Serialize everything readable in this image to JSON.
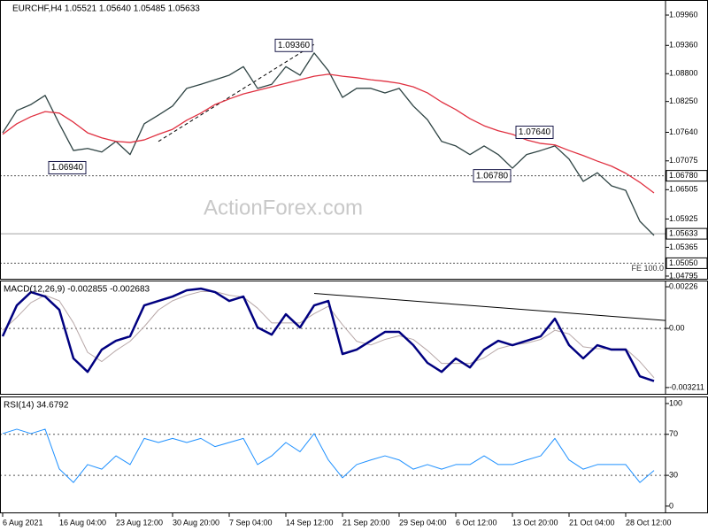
{
  "chart_data": [
    {
      "type": "line",
      "title": "EURCHF,H4  1.05521 1.05640 1.05485 1.05633",
      "watermark": "ActionForex.com",
      "categories": [
        "6 Aug 2021",
        null,
        null,
        null,
        "16 Aug 04:00",
        null,
        null,
        null,
        "23 Aug 12:00",
        null,
        null,
        null,
        "30 Aug 20:00",
        null,
        null,
        null,
        "7 Sep 04:00",
        null,
        null,
        null,
        "14 Sep 12:00",
        null,
        null,
        null,
        "21 Sep 20:00",
        null,
        null,
        null,
        "29 Sep 04:00",
        null,
        null,
        null,
        "6 Oct 12:00",
        null,
        null,
        null,
        "13 Oct 20:00",
        null,
        null,
        null,
        "21 Oct 04:00",
        null,
        null,
        null,
        "28 Oct 12:00",
        null,
        null
      ],
      "ylim": [
        1.04742,
        1.10223
      ],
      "yticks": [
        {
          "value": 1.0996,
          "label": "1.09960"
        },
        {
          "value": 1.0936,
          "label": "1.09360"
        },
        {
          "value": 1.088,
          "label": "1.08800"
        },
        {
          "value": 1.0825,
          "label": "1.08250"
        },
        {
          "value": 1.0764,
          "label": "1.07640"
        },
        {
          "value": 1.07075,
          "label": "1.07075"
        },
        {
          "value": 1.06505,
          "label": "1.06505"
        },
        {
          "value": 1.05925,
          "label": "1.05925"
        },
        {
          "value": 1.05365,
          "label": "1.05365"
        },
        {
          "value": 1.04795,
          "label": "1.04795"
        }
      ],
      "levels": [
        {
          "value": 1.0678,
          "label": "1.06780",
          "style": "dotted"
        },
        {
          "value": 1.05633,
          "label": "1.05633",
          "style": "solid"
        },
        {
          "value": 1.0505,
          "label": "1.05050",
          "style": "dotted",
          "note": "FE 100.0"
        }
      ],
      "annotations": [
        {
          "value": 1.0936,
          "label": "1.09360",
          "x": 22
        },
        {
          "value": 1.0764,
          "label": "1.07640",
          "x": 39
        },
        {
          "value": 1.0694,
          "label": "1.06940",
          "x": 6
        },
        {
          "value": 1.0678,
          "label": "1.06780",
          "x": 36
        }
      ],
      "trendlines": [
        {
          "from": [
            11,
            1.0746
          ],
          "to": [
            22,
            1.0938
          ],
          "style": "dashed"
        }
      ],
      "series": [
        {
          "color": "#2f4444",
          "width": 1.3,
          "values": [
            1.0763,
            1.0807,
            1.0819,
            1.0837,
            1.0781,
            1.0728,
            1.0732,
            1.0725,
            1.0746,
            1.072,
            1.0781,
            1.0798,
            1.0816,
            1.0851,
            1.0859,
            1.0868,
            1.0877,
            1.0894,
            1.0851,
            1.0859,
            1.0894,
            1.0877,
            1.0921,
            1.0886,
            1.0833,
            1.0851,
            1.0851,
            1.0842,
            1.0851,
            1.0816,
            1.0789,
            1.0746,
            1.0737,
            1.072,
            1.0737,
            1.072,
            1.0693,
            1.072,
            1.0728,
            1.0737,
            1.0711,
            1.0667,
            1.0684,
            1.0658,
            1.0649,
            1.0588,
            1.056
          ]
        },
        {
          "color": "#e03040",
          "width": 1.3,
          "values": [
            1.076,
            1.0781,
            1.0795,
            1.0805,
            1.0802,
            1.0784,
            1.0763,
            1.0753,
            1.0746,
            1.0744,
            1.0749,
            1.076,
            1.077,
            1.0788,
            1.0802,
            1.0819,
            1.083,
            1.084,
            1.0847,
            1.0854,
            1.0861,
            1.0868,
            1.0875,
            1.0879,
            1.0875,
            1.0872,
            1.0868,
            1.0865,
            1.0861,
            1.0854,
            1.0842,
            1.0824,
            1.0809,
            1.0791,
            1.0777,
            1.0767,
            1.076,
            1.0749,
            1.0742,
            1.0739,
            1.0728,
            1.0718,
            1.0707,
            1.0697,
            1.0683,
            1.0665,
            1.0644
          ]
        }
      ]
    },
    {
      "type": "line",
      "title": "MACD(12,26,9) -0.002855 -0.002683",
      "ylim": [
        -0.0036,
        0.00255
      ],
      "yticks": [
        {
          "value": 0.00226,
          "label": "0.00226"
        },
        {
          "value": 0,
          "label": "0.00"
        },
        {
          "value": -0.003211,
          "label": "-0.003211"
        }
      ],
      "levels": [
        0
      ],
      "trendlines": [
        {
          "from": [
            22,
            0.0019
          ],
          "to": [
            47,
            0.00043
          ],
          "style": "solid"
        }
      ],
      "series": [
        {
          "color": "#b8a8a8",
          "width": 1,
          "values": [
            -0.0001,
            0.0006,
            0.0014,
            0.0018,
            0.0015,
            0.0003,
            -0.0013,
            -0.0018,
            -0.0012,
            -0.0007,
            0.0001,
            0.001,
            0.0015,
            0.0018,
            0.002,
            0.002,
            0.0018,
            0.0017,
            0.0011,
            0.0003,
            0.0003,
            0.0003,
            0.0008,
            0.0012,
            0.0002,
            -0.0007,
            -0.0009,
            -0.0006,
            -0.0004,
            -0.0006,
            -0.0012,
            -0.0019,
            -0.0019,
            -0.0019,
            -0.0016,
            -0.0011,
            -0.0009,
            -0.0008,
            -0.0006,
            -0.0001,
            -0.0003,
            -0.001,
            -0.0011,
            -0.0011,
            -0.0011,
            -0.0018,
            -0.00268
          ]
        },
        {
          "color": "#000080",
          "width": 2.5,
          "values": [
            -0.00043,
            0.00125,
            0.00197,
            0.00173,
            0.00101,
            -0.00163,
            -0.00236,
            -0.00115,
            -0.00067,
            -0.00043,
            0.00125,
            0.00149,
            0.00173,
            0.00207,
            0.00216,
            0.00197,
            0.00149,
            0.00173,
            5e-05,
            -0.00034,
            0.00077,
            5e-05,
            0.00125,
            0.00149,
            -0.00139,
            -0.00115,
            -0.00067,
            -0.00019,
            -0.00019,
            -0.00091,
            -0.00187,
            -0.00236,
            -0.00163,
            -0.00212,
            -0.00115,
            -0.00067,
            -0.00091,
            -0.00067,
            -0.00043,
            0.00053,
            -0.00091,
            -0.00163,
            -0.00091,
            -0.00115,
            -0.00115,
            -0.0026,
            -0.00286
          ]
        }
      ]
    },
    {
      "type": "line",
      "title": "RSI(14) 34.6792",
      "ylim": [
        -7,
        106
      ],
      "yticks": [
        100,
        70,
        30,
        0
      ],
      "levels": [
        70,
        30
      ],
      "series": [
        {
          "color": "#1e90ff",
          "width": 1,
          "values": [
            70.7,
            75,
            70.7,
            75,
            36.2,
            23,
            40.5,
            36,
            49,
            40.5,
            66,
            62,
            66,
            62,
            66,
            58,
            62,
            66,
            40.5,
            49,
            62,
            53,
            70.7,
            45,
            27.6,
            40.5,
            45,
            49,
            45,
            36,
            40.5,
            36,
            40.5,
            40.5,
            49,
            40.5,
            40.5,
            45,
            49,
            66,
            45,
            36,
            40.5,
            40.5,
            40.5,
            23,
            34.7
          ]
        }
      ]
    }
  ]
}
